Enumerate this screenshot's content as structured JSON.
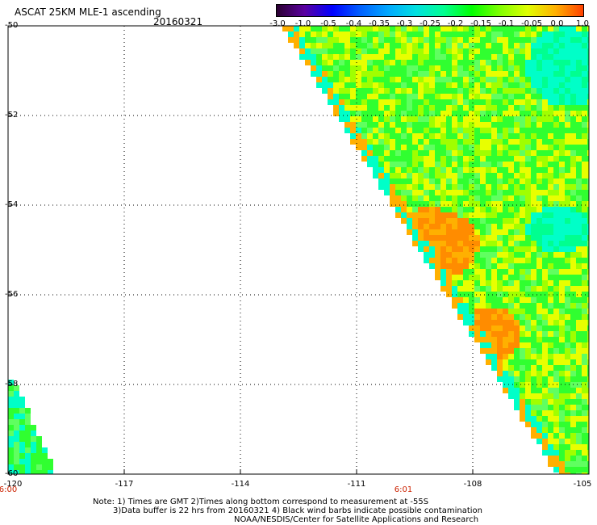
{
  "title": "ASCAT 25KM MLE-1 ascending",
  "date": "20160321",
  "colorbar": {
    "labels": [
      "-3.0",
      "-1.0",
      "-0.5",
      "-0.4",
      "-0.35",
      "-0.3",
      "-0.25",
      "-0.2",
      "-0.15",
      "-0.1",
      "-0.05",
      "0.0",
      "1.0"
    ],
    "colors": [
      "#2a0030",
      "#5a00a0",
      "#0000ff",
      "#0060ff",
      "#00a8ff",
      "#00e0e0",
      "#00ff90",
      "#00ff00",
      "#80ff00",
      "#e0ff00",
      "#ffb000",
      "#ff4000"
    ]
  },
  "latitudes": [
    "-50",
    "-52",
    "-54",
    "-56",
    "-58",
    "-60"
  ],
  "longitudes": [
    "-120",
    "-117",
    "-114",
    "-111",
    "-108",
    "-105"
  ],
  "times": [
    "6:00",
    "6:01"
  ],
  "notes": {
    "line1": "Note: 1) Times are GMT 2)Times along bottom correspond to measurement at -55S",
    "line2": "3)Data buffer is 22 hrs from 20160321 4) Black wind barbs indicate possible contamination",
    "line3": "NOAA/NESDIS/Center for Satellite Applications and Research"
  }
}
